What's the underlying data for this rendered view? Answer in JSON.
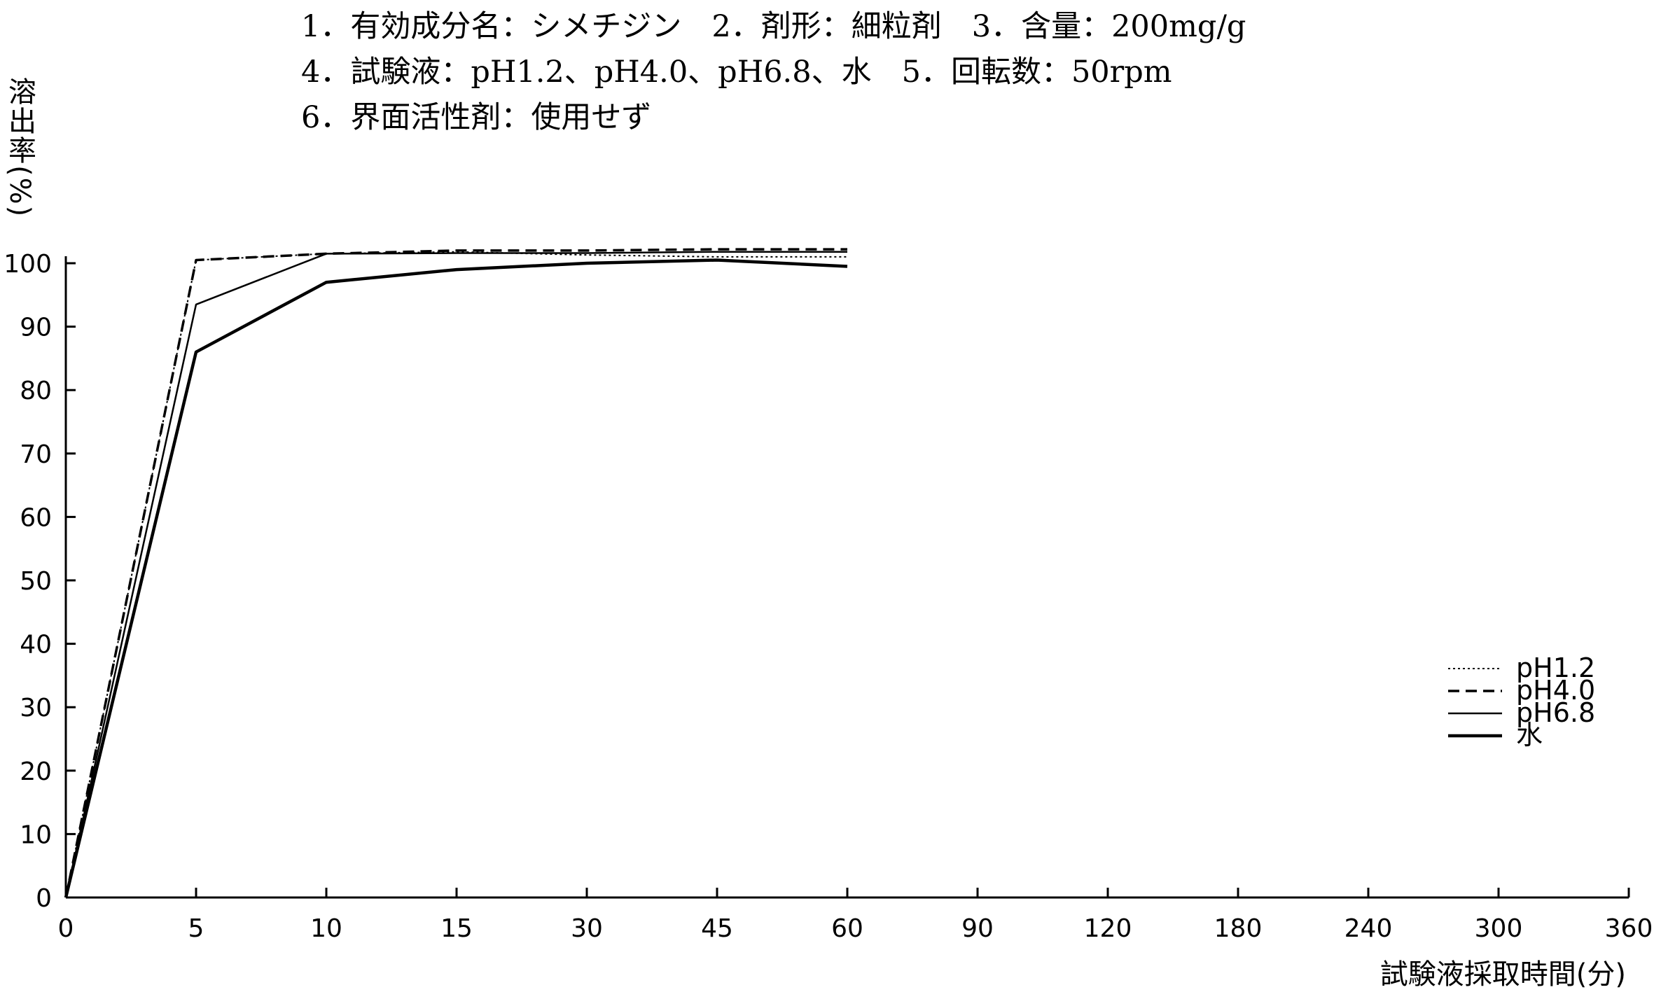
{
  "header": {
    "line1": "1．有効成分名：シメチジン　2．剤形：細粒剤　3．含量：200mg/g",
    "line2": "4．試験液：pH1.2、pH4.0、pH6.8、水　5．回転数：50rpm",
    "line3": "6．界面活性剤：使用せず"
  },
  "chart_data": {
    "type": "line",
    "title": "",
    "xlabel": "試験液採取時間(分)",
    "ylabel": "溶出率(%)",
    "x_categories": [
      "0",
      "5",
      "10",
      "15",
      "30",
      "45",
      "60",
      "90",
      "120",
      "180",
      "240",
      "300",
      "360"
    ],
    "ylim": [
      0,
      100
    ],
    "y_ticks": [
      "0",
      "10",
      "20",
      "30",
      "40",
      "50",
      "60",
      "70",
      "80",
      "90",
      "100"
    ],
    "grid": false,
    "legend_position": "right",
    "series": [
      {
        "name": "pH1.2",
        "style": "dotted",
        "x": [
          "0",
          "5",
          "10",
          "15",
          "30",
          "45",
          "60"
        ],
        "values": [
          0,
          100.5,
          101.5,
          101.8,
          101.3,
          101.0,
          101.0
        ]
      },
      {
        "name": "pH4.0",
        "style": "dashed",
        "x": [
          "0",
          "5",
          "10",
          "15",
          "30",
          "45",
          "60"
        ],
        "values": [
          0,
          100.5,
          101.5,
          102.0,
          102.0,
          102.2,
          102.2
        ]
      },
      {
        "name": "pH6.8",
        "style": "thin",
        "x": [
          "0",
          "5",
          "10",
          "15",
          "30",
          "45",
          "60"
        ],
        "values": [
          0,
          93.5,
          101.5,
          101.6,
          101.6,
          101.8,
          101.8
        ]
      },
      {
        "name": "水",
        "style": "thick",
        "x": [
          "0",
          "5",
          "10",
          "15",
          "30",
          "45",
          "60"
        ],
        "values": [
          0,
          86.0,
          97.0,
          99.0,
          100.0,
          100.5,
          99.5
        ]
      }
    ]
  }
}
